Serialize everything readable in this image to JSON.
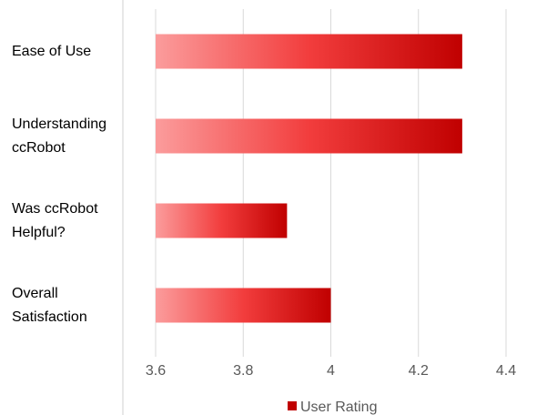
{
  "chart_data": {
    "type": "bar",
    "orientation": "horizontal",
    "categories": [
      "Ease of Use",
      "Understanding ccRobot",
      "Was ccRobot Helpful?",
      "Overall Satisfaction"
    ],
    "series": [
      {
        "name": "User Rating",
        "color": "#c00000",
        "values": [
          4.3,
          4.3,
          3.9,
          4.0
        ]
      }
    ],
    "xlim": [
      3.6,
      4.4
    ],
    "xticks": [
      3.6,
      3.8,
      4,
      4.2,
      4.4
    ],
    "grid": true
  }
}
